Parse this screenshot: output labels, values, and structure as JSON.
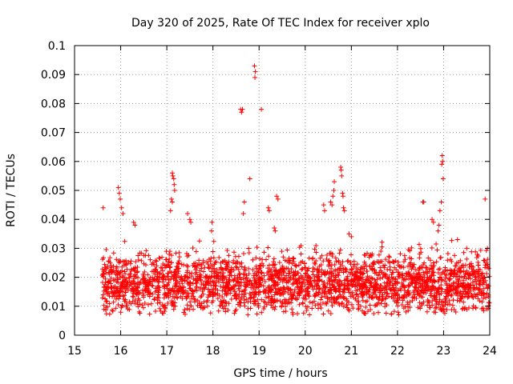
{
  "chart_data": {
    "type": "scatter",
    "title": "Day 320 of 2025, Rate Of TEC Index for receiver xplo",
    "xlabel": "GPS time / hours",
    "ylabel": "ROTI / TECUs",
    "xlim": [
      15,
      24
    ],
    "ylim": [
      0,
      0.1
    ],
    "x_ticks": [
      "15",
      "16",
      "17",
      "18",
      "19",
      "20",
      "21",
      "22",
      "23",
      "24"
    ],
    "y_ticks": [
      "0",
      "0.01",
      "0.02",
      "0.03",
      "0.04",
      "0.05",
      "0.06",
      "0.07",
      "0.08",
      "0.09",
      "0.1"
    ],
    "grid": true,
    "marker": "plus",
    "color": "#ff0000",
    "dense_band": {
      "x_start": 15.6,
      "x_end": 24.0,
      "y_min": 0.007,
      "y_max": 0.035,
      "typical": 0.018
    },
    "series": [
      {
        "name": "ROTI",
        "points": [
          [
            15.62,
            0.044
          ],
          [
            15.95,
            0.051
          ],
          [
            15.97,
            0.049
          ],
          [
            15.99,
            0.047
          ],
          [
            16.02,
            0.044
          ],
          [
            16.05,
            0.042
          ],
          [
            16.28,
            0.039
          ],
          [
            16.31,
            0.038
          ],
          [
            17.12,
            0.056
          ],
          [
            17.13,
            0.055
          ],
          [
            17.15,
            0.054
          ],
          [
            17.16,
            0.052
          ],
          [
            17.17,
            0.05
          ],
          [
            17.1,
            0.047
          ],
          [
            17.12,
            0.046
          ],
          [
            17.08,
            0.043
          ],
          [
            17.45,
            0.042
          ],
          [
            17.5,
            0.04
          ],
          [
            17.52,
            0.039
          ],
          [
            17.98,
            0.039
          ],
          [
            17.97,
            0.036
          ],
          [
            18.6,
            0.078
          ],
          [
            18.62,
            0.077
          ],
          [
            18.64,
            0.078
          ],
          [
            18.68,
            0.046
          ],
          [
            18.66,
            0.042
          ],
          [
            18.8,
            0.054
          ],
          [
            18.9,
            0.093
          ],
          [
            18.92,
            0.091
          ],
          [
            18.91,
            0.089
          ],
          [
            19.05,
            0.078
          ],
          [
            19.2,
            0.044
          ],
          [
            19.22,
            0.043
          ],
          [
            19.38,
            0.048
          ],
          [
            19.41,
            0.047
          ],
          [
            19.33,
            0.037
          ],
          [
            19.35,
            0.036
          ],
          [
            20.4,
            0.045
          ],
          [
            20.42,
            0.043
          ],
          [
            20.63,
            0.053
          ],
          [
            20.62,
            0.05
          ],
          [
            20.6,
            0.048
          ],
          [
            20.55,
            0.046
          ],
          [
            20.58,
            0.045
          ],
          [
            20.77,
            0.058
          ],
          [
            20.78,
            0.057
          ],
          [
            20.79,
            0.055
          ],
          [
            20.81,
            0.049
          ],
          [
            20.82,
            0.048
          ],
          [
            20.83,
            0.044
          ],
          [
            20.85,
            0.043
          ],
          [
            20.95,
            0.035
          ],
          [
            21.0,
            0.034
          ],
          [
            22.55,
            0.046
          ],
          [
            22.57,
            0.046
          ],
          [
            22.75,
            0.04
          ],
          [
            22.78,
            0.039
          ],
          [
            22.97,
            0.062
          ],
          [
            22.98,
            0.06
          ],
          [
            22.96,
            0.059
          ],
          [
            22.99,
            0.054
          ],
          [
            22.95,
            0.046
          ],
          [
            22.92,
            0.043
          ],
          [
            22.9,
            0.038
          ],
          [
            22.88,
            0.036
          ],
          [
            23.3,
            0.033
          ],
          [
            23.5,
            0.03
          ],
          [
            23.9,
            0.047
          ],
          [
            23.95,
            0.03
          ]
        ]
      }
    ]
  }
}
